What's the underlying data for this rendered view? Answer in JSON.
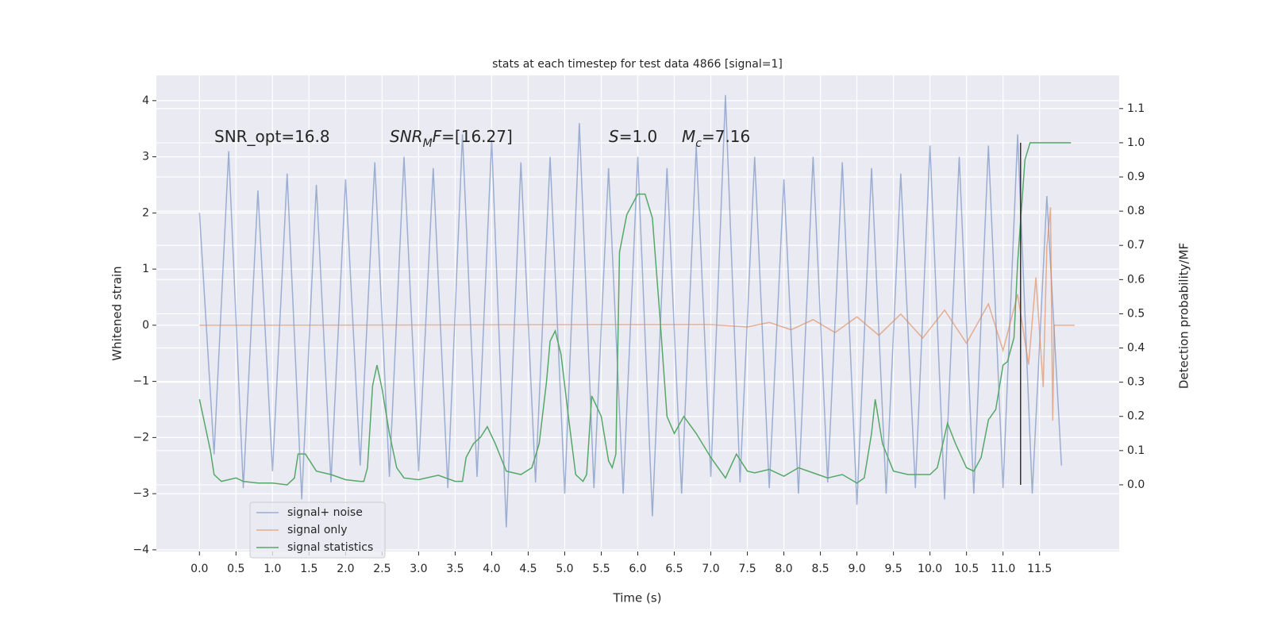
{
  "chart_data": {
    "type": "line",
    "title": "stats at each timestep for test data 4866 [signal=1]",
    "xlabel": "Time (s)",
    "ylabel": "Whitened strain",
    "y2label": "Detection probability/MF",
    "xlim": [
      -0.59,
      12.59
    ],
    "ylim": [
      -4.03,
      4.45
    ],
    "y2lim": [
      -0.195,
      1.197
    ],
    "grid": true,
    "legend": "lower left",
    "xticks": [
      {
        "value": 0,
        "label": "0.0"
      },
      {
        "value": 0.5,
        "label": "0.5"
      },
      {
        "value": 1,
        "label": "1.0"
      },
      {
        "value": 1.5,
        "label": "1.5"
      },
      {
        "value": 2,
        "label": "2.0"
      },
      {
        "value": 2.5,
        "label": "2.5"
      },
      {
        "value": 3,
        "label": "3.0"
      },
      {
        "value": 3.5,
        "label": "3.5"
      },
      {
        "value": 4,
        "label": "4.0"
      },
      {
        "value": 4.5,
        "label": "4.5"
      },
      {
        "value": 5,
        "label": "5.0"
      },
      {
        "value": 5.5,
        "label": "5.5"
      },
      {
        "value": 6,
        "label": "6.0"
      },
      {
        "value": 6.5,
        "label": "6.5"
      },
      {
        "value": 7,
        "label": "7.0"
      },
      {
        "value": 7.5,
        "label": "7.5"
      },
      {
        "value": 8,
        "label": "8.0"
      },
      {
        "value": 8.5,
        "label": "8.5"
      },
      {
        "value": 9,
        "label": "9.0"
      },
      {
        "value": 9.5,
        "label": "9.5"
      },
      {
        "value": 10,
        "label": "10.0"
      },
      {
        "value": 10.5,
        "label": "10.5"
      },
      {
        "value": 11,
        "label": "11.0"
      },
      {
        "value": 11.5,
        "label": "11.5"
      }
    ],
    "yticks": [
      {
        "value": -4,
        "label": "−4"
      },
      {
        "value": -3,
        "label": "−3"
      },
      {
        "value": -2,
        "label": "−2"
      },
      {
        "value": -1,
        "label": "−1"
      },
      0,
      1,
      2,
      3,
      4
    ],
    "y2ticks": [
      {
        "value": 0,
        "label": "0.0"
      },
      {
        "value": 0.1,
        "label": "0.1"
      },
      {
        "value": 0.2,
        "label": "0.2"
      },
      {
        "value": 0.3,
        "label": "0.3"
      },
      {
        "value": 0.4,
        "label": "0.4"
      },
      {
        "value": 0.5,
        "label": "0.5"
      },
      {
        "value": 0.6,
        "label": "0.6"
      },
      {
        "value": 0.7,
        "label": "0.7"
      },
      {
        "value": 0.8,
        "label": "0.8"
      },
      {
        "value": 0.9,
        "label": "0.9"
      },
      {
        "value": 1,
        "label": "1.0"
      },
      {
        "value": 1.1,
        "label": "1.1"
      }
    ],
    "series": [
      {
        "name": "signal+ noise",
        "color": "#4c72b0",
        "opacity": 0.5,
        "x": [
          0,
          0.2,
          0.4,
          0.6,
          0.8,
          1.0,
          1.2,
          1.4,
          1.6,
          1.8,
          2.0,
          2.2,
          2.4,
          2.6,
          2.8,
          3.0,
          3.2,
          3.4,
          3.6,
          3.8,
          4.0,
          4.2,
          4.4,
          4.6,
          4.8,
          5.0,
          5.2,
          5.4,
          5.6,
          5.8,
          6.0,
          6.2,
          6.4,
          6.6,
          6.8,
          7.0,
          7.2,
          7.4,
          7.6,
          7.8,
          8.0,
          8.2,
          8.4,
          8.6,
          8.8,
          9.0,
          9.2,
          9.4,
          9.6,
          9.8,
          10.0,
          10.2,
          10.4,
          10.6,
          10.8,
          11.0,
          11.2,
          11.4,
          11.6,
          11.8
        ],
        "values": [
          2.0,
          -2.3,
          3.1,
          -2.9,
          2.4,
          -2.6,
          2.7,
          -3.1,
          2.5,
          -2.8,
          2.6,
          -2.5,
          2.9,
          -2.7,
          3.0,
          -2.6,
          2.8,
          -2.9,
          3.4,
          -2.7,
          3.3,
          -3.6,
          2.9,
          -2.8,
          3.0,
          -3.0,
          3.6,
          -2.9,
          2.8,
          -3.0,
          3.0,
          -3.4,
          2.8,
          -3.0,
          3.2,
          -2.7,
          4.1,
          -2.8,
          3.0,
          -2.9,
          2.6,
          -3.0,
          3.0,
          -2.8,
          2.9,
          -3.2,
          2.8,
          -3.0,
          2.7,
          -2.9,
          3.2,
          -3.1,
          3.0,
          -3.0,
          3.2,
          -2.9,
          3.4,
          -3.0,
          2.3,
          -2.5
        ]
      },
      {
        "name": "signal only",
        "color": "#dd8452",
        "opacity": 0.6,
        "x": [
          0,
          7.0,
          7.5,
          7.8,
          8.1,
          8.4,
          8.7,
          9.0,
          9.3,
          9.6,
          9.9,
          10.2,
          10.5,
          10.8,
          11.0,
          11.2,
          11.35,
          11.45,
          11.55,
          11.6,
          11.65,
          11.68,
          11.7,
          11.98
        ],
        "values": [
          0,
          0.01,
          -0.03,
          0.05,
          -0.08,
          0.1,
          -0.13,
          0.15,
          -0.18,
          0.2,
          -0.23,
          0.27,
          -0.32,
          0.38,
          -0.45,
          0.55,
          -0.7,
          0.85,
          -1.1,
          1.4,
          2.1,
          -1.7,
          0,
          0
        ]
      },
      {
        "name": "signal statistics",
        "color": "#55a868",
        "opacity": 1,
        "axis": "y2",
        "x": [
          0,
          0.15,
          0.2,
          0.3,
          0.5,
          0.6,
          0.8,
          1.0,
          1.2,
          1.3,
          1.35,
          1.45,
          1.6,
          1.8,
          2.0,
          2.2,
          2.25,
          2.3,
          2.37,
          2.43,
          2.5,
          2.6,
          2.7,
          2.8,
          3.0,
          3.27,
          3.5,
          3.6,
          3.65,
          3.75,
          3.85,
          3.94,
          4.05,
          4.2,
          4.4,
          4.55,
          4.65,
          4.75,
          4.8,
          4.87,
          4.95,
          5.05,
          5.15,
          5.25,
          5.3,
          5.37,
          5.5,
          5.6,
          5.65,
          5.7,
          5.75,
          5.85,
          6.0,
          6.1,
          6.2,
          6.3,
          6.4,
          6.5,
          6.63,
          6.8,
          7.0,
          7.2,
          7.35,
          7.5,
          7.6,
          7.8,
          8.0,
          8.2,
          8.4,
          8.6,
          8.8,
          9.0,
          9.1,
          9.2,
          9.25,
          9.35,
          9.5,
          9.7,
          10.0,
          10.1,
          10.24,
          10.35,
          10.5,
          10.6,
          10.7,
          10.8,
          10.9,
          11.0,
          11.06,
          11.15,
          11.2,
          11.25,
          11.3,
          11.37,
          11.5,
          11.93
        ],
        "values": [
          0.25,
          0.1,
          0.03,
          0.01,
          0.02,
          0.01,
          0.005,
          0.005,
          0.0,
          0.02,
          0.09,
          0.09,
          0.04,
          0.03,
          0.015,
          0.01,
          0.01,
          0.05,
          0.29,
          0.35,
          0.28,
          0.15,
          0.05,
          0.02,
          0.015,
          0.028,
          0.01,
          0.01,
          0.08,
          0.12,
          0.14,
          0.17,
          0.12,
          0.04,
          0.03,
          0.05,
          0.12,
          0.3,
          0.42,
          0.45,
          0.38,
          0.2,
          0.03,
          0.01,
          0.03,
          0.26,
          0.2,
          0.07,
          0.05,
          0.09,
          0.68,
          0.79,
          0.85,
          0.85,
          0.78,
          0.5,
          0.2,
          0.15,
          0.2,
          0.15,
          0.08,
          0.02,
          0.09,
          0.04,
          0.035,
          0.045,
          0.025,
          0.05,
          0.035,
          0.02,
          0.03,
          0.005,
          0.02,
          0.15,
          0.25,
          0.12,
          0.04,
          0.03,
          0.03,
          0.05,
          0.18,
          0.12,
          0.05,
          0.04,
          0.08,
          0.19,
          0.22,
          0.35,
          0.36,
          0.43,
          0.65,
          0.8,
          0.95,
          1.0,
          1.0,
          1.0
        ]
      }
    ],
    "vline": {
      "x": 11.24,
      "ymin": 0,
      "ymax": 1,
      "axis": "y2",
      "color": "#333333"
    },
    "annotations": [
      {
        "parts": [
          {
            "text": "SNR_opt=16.8"
          }
        ]
      },
      {
        "parts": [
          {
            "text": "SNR",
            "italic": true
          },
          {
            "text": "M",
            "italic": true,
            "sub": true
          },
          {
            "text": "F",
            "italic": true
          },
          {
            "text": "=[16.27]"
          }
        ]
      },
      {
        "parts": [
          {
            "text": "S",
            "italic": true
          },
          {
            "text": "=1.0"
          }
        ]
      },
      {
        "parts": [
          {
            "text": "M",
            "italic": true
          },
          {
            "text": "c",
            "italic": true,
            "sub": true
          },
          {
            "text": "=7.16"
          }
        ]
      }
    ]
  }
}
